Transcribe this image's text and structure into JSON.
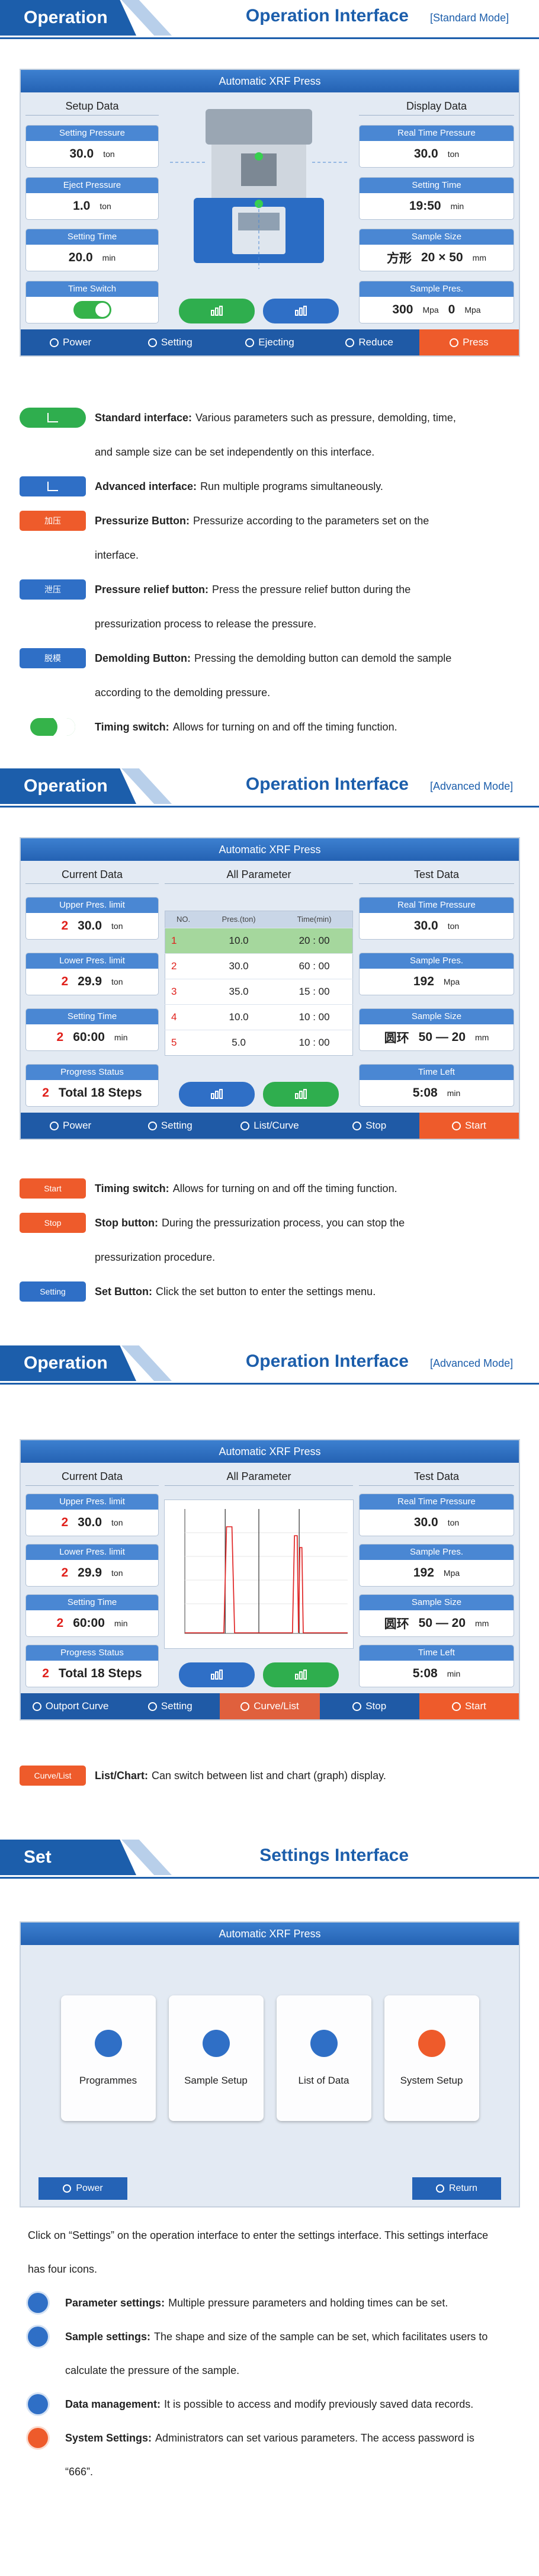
{
  "headers": [
    {
      "tag": "Operation",
      "title": "Operation Interface",
      "mode": "[Standard Mode]"
    },
    {
      "tag": "Operation",
      "title": "Operation Interface",
      "mode": "[Advanced Mode]"
    },
    {
      "tag": "Operation",
      "title": "Operation Interface",
      "mode": "[Advanced Mode]"
    },
    {
      "tag": "Set",
      "title": "Settings Interface"
    }
  ],
  "screens": [
    {
      "title": "Automatic XRF Press",
      "left": {
        "heading": "Setup Data",
        "fields": [
          {
            "label": "Setting Pressure",
            "parts": [
              "30.0",
              "ton"
            ]
          },
          {
            "label": "Eject Pressure",
            "parts": [
              "1.0",
              "ton"
            ]
          },
          {
            "label": "Setting Time",
            "parts": [
              "20.0",
              "min"
            ]
          },
          {
            "label": "Time Switch"
          }
        ]
      },
      "right": {
        "heading": "Display Data",
        "fields": [
          {
            "label": "Real Time Pressure",
            "parts": [
              "30.0",
              "ton"
            ]
          },
          {
            "label": "Setting Time",
            "parts": [
              "19:50",
              "min"
            ]
          },
          {
            "label": "Sample Size",
            "parts": [
              "方形",
              "20 × 50",
              "mm"
            ]
          },
          {
            "label": "Sample Pres.",
            "parts": [
              "300",
              "Mpa",
              "0",
              "Mpa"
            ]
          }
        ]
      },
      "buttons": [
        "Power",
        "Setting",
        "Ejecting",
        "Reduce",
        "Press"
      ]
    },
    {
      "title": "Automatic XRF Press",
      "left": {
        "heading": "Current Data",
        "fields": [
          {
            "label": "Upper Pres. limit",
            "parts": [
              "2",
              "30.0",
              "ton"
            ]
          },
          {
            "label": "Lower Pres. limit",
            "parts": [
              "2",
              "29.9",
              "ton"
            ]
          },
          {
            "label": "Setting Time",
            "parts": [
              "2",
              "60:00",
              "min"
            ]
          },
          {
            "label": "Progress Status",
            "parts": [
              "2",
              "Total 18 Steps"
            ]
          }
        ]
      },
      "center": {
        "heading": "All Parameter",
        "columns": [
          "NO.",
          "Pres.(ton)",
          "Time(min)"
        ],
        "rows": [
          [
            "1",
            "10.0",
            "20 : 00"
          ],
          [
            "2",
            "30.0",
            "60 : 00"
          ],
          [
            "3",
            "35.0",
            "15 : 00"
          ],
          [
            "4",
            "10.0",
            "10 : 00"
          ],
          [
            "5",
            "5.0",
            "10 : 00"
          ]
        ]
      },
      "right": {
        "heading": "Test Data",
        "fields": [
          {
            "label": "Real Time Pressure",
            "parts": [
              "30.0",
              "ton"
            ]
          },
          {
            "label": "Sample Pres.",
            "parts": [
              "192",
              "Mpa"
            ]
          },
          {
            "label": "Sample Size",
            "parts": [
              "圆环",
              "50 — 20",
              "mm"
            ]
          },
          {
            "label": "Time Left",
            "parts": [
              "5:08",
              "min"
            ]
          }
        ]
      },
      "buttons": [
        "Power",
        "Setting",
        "List/Curve",
        "Stop",
        "Start"
      ]
    },
    {
      "title": "Automatic XRF Press",
      "left": {
        "heading": "Current Data",
        "fields": [
          {
            "label": "Upper Pres. limit",
            "parts": [
              "2",
              "30.0",
              "ton"
            ]
          },
          {
            "label": "Lower Pres. limit",
            "parts": [
              "2",
              "29.9",
              "ton"
            ]
          },
          {
            "label": "Setting Time",
            "parts": [
              "2",
              "60:00",
              "min"
            ]
          },
          {
            "label": "Progress Status",
            "parts": [
              "2",
              "Total 18 Steps"
            ]
          }
        ]
      },
      "center": {
        "heading": "All Parameter"
      },
      "right": {
        "heading": "Test Data",
        "fields": [
          {
            "label": "Real Time Pressure",
            "parts": [
              "30.0",
              "ton"
            ]
          },
          {
            "label": "Sample Pres.",
            "parts": [
              "192",
              "Mpa"
            ]
          },
          {
            "label": "Sample Size",
            "parts": [
              "圆环",
              "50 — 20",
              "mm"
            ]
          },
          {
            "label": "Time Left",
            "parts": [
              "5:08",
              "min"
            ]
          }
        ]
      },
      "buttons": [
        "Outport Curve",
        "Setting",
        "Curve/List",
        "Stop",
        "Start"
      ]
    },
    {
      "title": "Automatic XRF Press",
      "tiles": [
        "Programmes",
        "Sample Setup",
        "List of Data",
        "System Setup"
      ],
      "buttons": [
        "Power",
        "Return"
      ]
    }
  ],
  "legends": [
    [
      {
        "term": "Standard interface:",
        "text": "Various parameters such as pressure, demolding, time, and sample size can be set independently on this interface."
      },
      {
        "term": "Advanced interface:",
        "text": "Run multiple programs simultaneously."
      },
      {
        "icon": "加压",
        "term": "Pressurize Button:",
        "text": "Pressurize according to the parameters set on the interface."
      },
      {
        "icon": "泄压",
        "term": "Pressure relief button:",
        "text": "Press the pressure relief button during the pressurization process to release the pressure."
      },
      {
        "icon": "脱模",
        "term": "Demolding Button:",
        "text": "Pressing the demolding button can demold the sample according to the demolding pressure."
      },
      {
        "term": "Timing switch:",
        "text": "Allows for turning on and off the timing function."
      }
    ],
    [
      {
        "icon": "Start",
        "term": "Timing switch:",
        "text": "Allows for turning on and off the timing function."
      },
      {
        "icon": "Stop",
        "term": "Stop button:",
        "text": "During the pressurization process, you can stop the pressurization procedure."
      },
      {
        "icon": "Setting",
        "term": "Set Button:",
        "text": "Click the set button to enter the settings menu."
      }
    ],
    [
      {
        "icon": "Curve/List",
        "term": "List/Chart:",
        "text": "Can switch between list and chart (graph) display."
      }
    ]
  ],
  "settings_text": {
    "intro": "Click on “Settings” on the operation interface to enter the settings interface. This settings interface has four icons.",
    "items": [
      {
        "term": "Parameter settings:",
        "text": "Multiple pressure parameters and holding times can be set."
      },
      {
        "term": "Sample settings:",
        "text": "The shape and size of the sample can be set, which facilitates users to calculate the pressure of the sample."
      },
      {
        "term": "Data management:",
        "text": "It is possible to access and modify previously saved data records."
      },
      {
        "term": "System Settings:",
        "text": "Administrators can set various parameters. The access password is “666”."
      }
    ]
  }
}
